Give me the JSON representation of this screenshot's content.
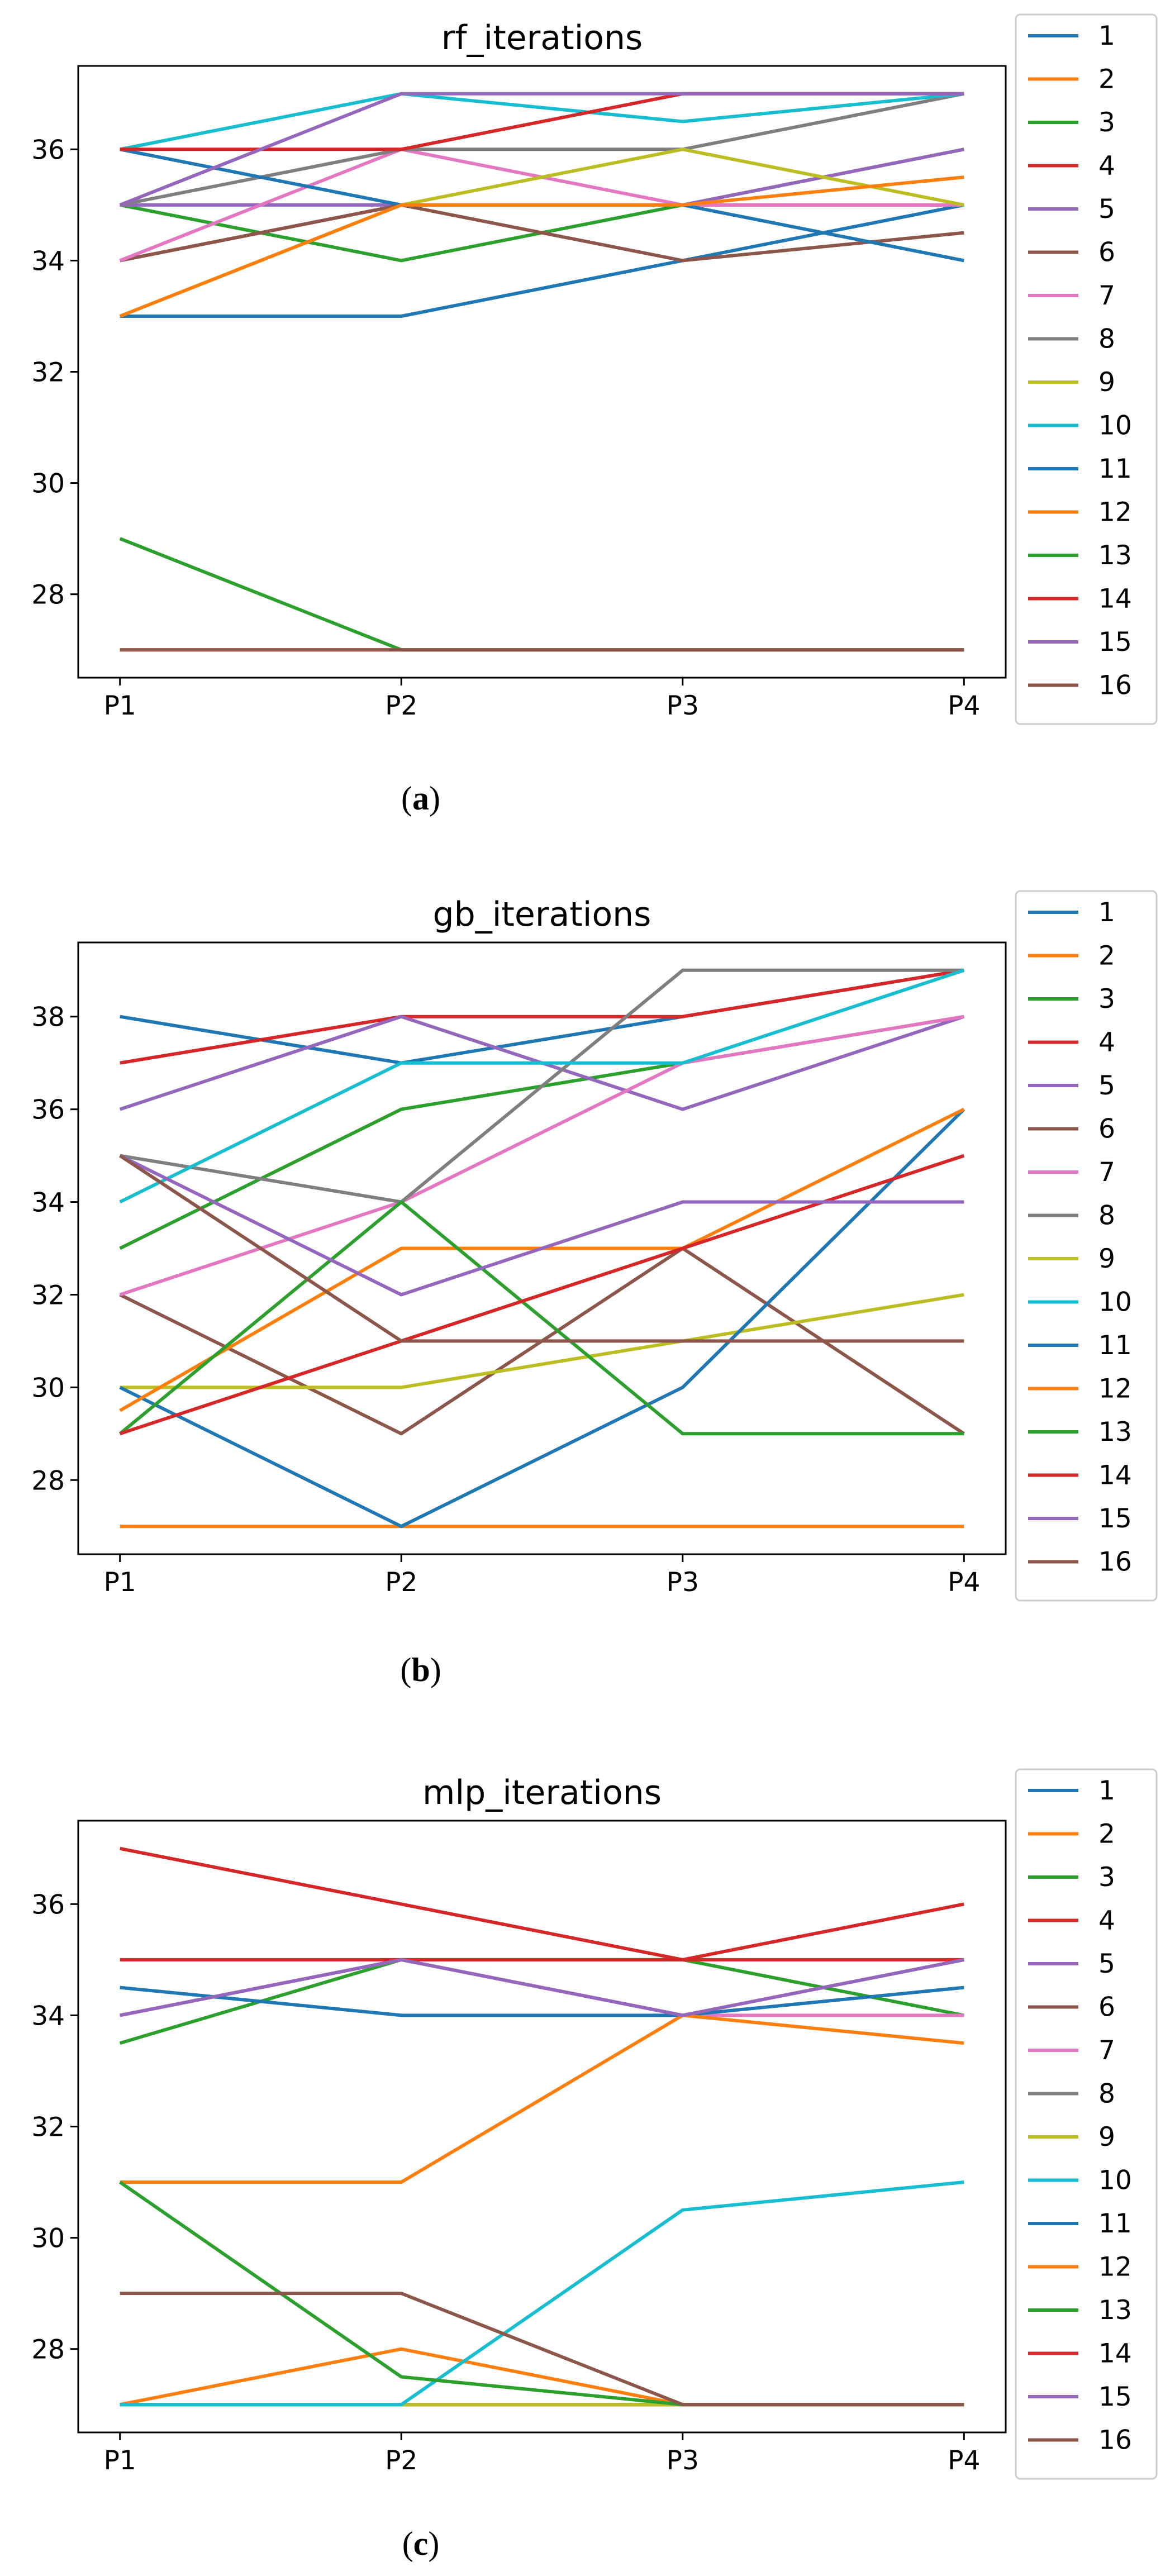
{
  "chart_data": [
    {
      "type": "line",
      "title": "rf_iterations",
      "subfigure_label": "a",
      "categories": [
        "P1",
        "P2",
        "P3",
        "P4"
      ],
      "ylim": [
        26.5,
        37.5
      ],
      "yticks": [
        28,
        30,
        32,
        34,
        36
      ],
      "grid": false,
      "legend": "right-outside",
      "series": [
        {
          "name": "1",
          "color": "#1f77b4",
          "values": [
            33,
            33,
            34,
            35
          ]
        },
        {
          "name": "2",
          "color": "#ff7f0e",
          "values": [
            27,
            27,
            27,
            27
          ]
        },
        {
          "name": "3",
          "color": "#2ca02c",
          "values": [
            35,
            34,
            35,
            36
          ]
        },
        {
          "name": "4",
          "color": "#d62728",
          "values": [
            34,
            35,
            35,
            35
          ]
        },
        {
          "name": "5",
          "color": "#9467bd",
          "values": [
            35,
            35,
            35,
            36
          ]
        },
        {
          "name": "6",
          "color": "#8c564b",
          "values": [
            34,
            35,
            34,
            34.5
          ]
        },
        {
          "name": "7",
          "color": "#e377c2",
          "values": [
            34,
            36,
            35,
            35
          ]
        },
        {
          "name": "8",
          "color": "#7f7f7f",
          "values": [
            35,
            36,
            36,
            37
          ]
        },
        {
          "name": "9",
          "color": "#bcbd22",
          "values": [
            33,
            35,
            36,
            35
          ]
        },
        {
          "name": "10",
          "color": "#17becf",
          "values": [
            36,
            37,
            36.5,
            37
          ]
        },
        {
          "name": "11",
          "color": "#1f77b4",
          "values": [
            36,
            35,
            35,
            34
          ]
        },
        {
          "name": "12",
          "color": "#ff7f0e",
          "values": [
            33,
            35,
            35,
            35.5
          ]
        },
        {
          "name": "13",
          "color": "#2ca02c",
          "values": [
            29,
            27,
            27,
            27
          ]
        },
        {
          "name": "14",
          "color": "#d62728",
          "values": [
            36,
            36,
            37,
            37
          ]
        },
        {
          "name": "15",
          "color": "#9467bd",
          "values": [
            35,
            37,
            37,
            37
          ]
        },
        {
          "name": "16",
          "color": "#8c564b",
          "values": [
            27,
            27,
            27,
            27
          ]
        }
      ]
    },
    {
      "type": "line",
      "title": "gb_iterations",
      "subfigure_label": "b",
      "categories": [
        "P1",
        "P2",
        "P3",
        "P4"
      ],
      "ylim": [
        26.4,
        39.6
      ],
      "yticks": [
        28,
        30,
        32,
        34,
        36,
        38
      ],
      "grid": false,
      "legend": "right-outside",
      "series": [
        {
          "name": "1",
          "color": "#1f77b4",
          "values": [
            38,
            37,
            38,
            39
          ]
        },
        {
          "name": "2",
          "color": "#ff7f0e",
          "values": [
            27,
            27,
            27,
            27
          ]
        },
        {
          "name": "3",
          "color": "#2ca02c",
          "values": [
            33,
            36,
            37,
            38
          ]
        },
        {
          "name": "4",
          "color": "#d62728",
          "values": [
            37,
            38,
            38,
            39
          ]
        },
        {
          "name": "5",
          "color": "#9467bd",
          "values": [
            36,
            38,
            36,
            38
          ]
        },
        {
          "name": "6",
          "color": "#8c564b",
          "values": [
            32,
            29,
            33,
            29
          ]
        },
        {
          "name": "7",
          "color": "#e377c2",
          "values": [
            32,
            34,
            37,
            38
          ]
        },
        {
          "name": "8",
          "color": "#7f7f7f",
          "values": [
            35,
            34,
            39,
            39
          ]
        },
        {
          "name": "9",
          "color": "#bcbd22",
          "values": [
            30,
            30,
            31,
            32
          ]
        },
        {
          "name": "10",
          "color": "#17becf",
          "values": [
            34,
            37,
            37,
            39
          ]
        },
        {
          "name": "11",
          "color": "#1f77b4",
          "values": [
            30,
            27,
            30,
            36
          ]
        },
        {
          "name": "12",
          "color": "#ff7f0e",
          "values": [
            29.5,
            33,
            33,
            36
          ]
        },
        {
          "name": "13",
          "color": "#2ca02c",
          "values": [
            29,
            34,
            29,
            29
          ]
        },
        {
          "name": "14",
          "color": "#d62728",
          "values": [
            29,
            31,
            33,
            35
          ]
        },
        {
          "name": "15",
          "color": "#9467bd",
          "values": [
            35,
            32,
            34,
            34
          ]
        },
        {
          "name": "16",
          "color": "#8c564b",
          "values": [
            35,
            31,
            31,
            31
          ]
        }
      ]
    },
    {
      "type": "line",
      "title": "mlp_iterations",
      "subfigure_label": "c",
      "categories": [
        "P1",
        "P2",
        "P3",
        "P4"
      ],
      "ylim": [
        26.5,
        37.5
      ],
      "yticks": [
        28,
        30,
        32,
        34,
        36
      ],
      "grid": false,
      "legend": "right-outside",
      "series": [
        {
          "name": "1",
          "color": "#1f77b4",
          "values": [
            27,
            27,
            27,
            27
          ]
        },
        {
          "name": "2",
          "color": "#ff7f0e",
          "values": [
            27,
            28,
            27,
            27
          ]
        },
        {
          "name": "3",
          "color": "#2ca02c",
          "values": [
            33.5,
            35,
            35,
            34
          ]
        },
        {
          "name": "4",
          "color": "#d62728",
          "values": [
            37,
            36,
            35,
            36
          ]
        },
        {
          "name": "5",
          "color": "#9467bd",
          "values": [
            34,
            35,
            34,
            35
          ]
        },
        {
          "name": "6",
          "color": "#8c564b",
          "values": [
            27,
            27,
            27,
            27
          ]
        },
        {
          "name": "7",
          "color": "#e377c2",
          "values": [
            34,
            35,
            34,
            34
          ]
        },
        {
          "name": "8",
          "color": "#7f7f7f",
          "values": [
            27,
            27,
            27,
            27
          ]
        },
        {
          "name": "9",
          "color": "#bcbd22",
          "values": [
            27,
            27,
            27,
            27
          ]
        },
        {
          "name": "10",
          "color": "#17becf",
          "values": [
            27,
            27,
            30.5,
            31
          ]
        },
        {
          "name": "11",
          "color": "#1f77b4",
          "values": [
            34.5,
            34,
            34,
            34.5
          ]
        },
        {
          "name": "12",
          "color": "#ff7f0e",
          "values": [
            31,
            31,
            34,
            33.5
          ]
        },
        {
          "name": "13",
          "color": "#2ca02c",
          "values": [
            31,
            27.5,
            27,
            27
          ]
        },
        {
          "name": "14",
          "color": "#d62728",
          "values": [
            35,
            35,
            35,
            35
          ]
        },
        {
          "name": "15",
          "color": "#9467bd",
          "values": [
            34,
            35,
            34,
            35
          ]
        },
        {
          "name": "16",
          "color": "#8c564b",
          "values": [
            29,
            29,
            27,
            27
          ]
        }
      ]
    }
  ]
}
